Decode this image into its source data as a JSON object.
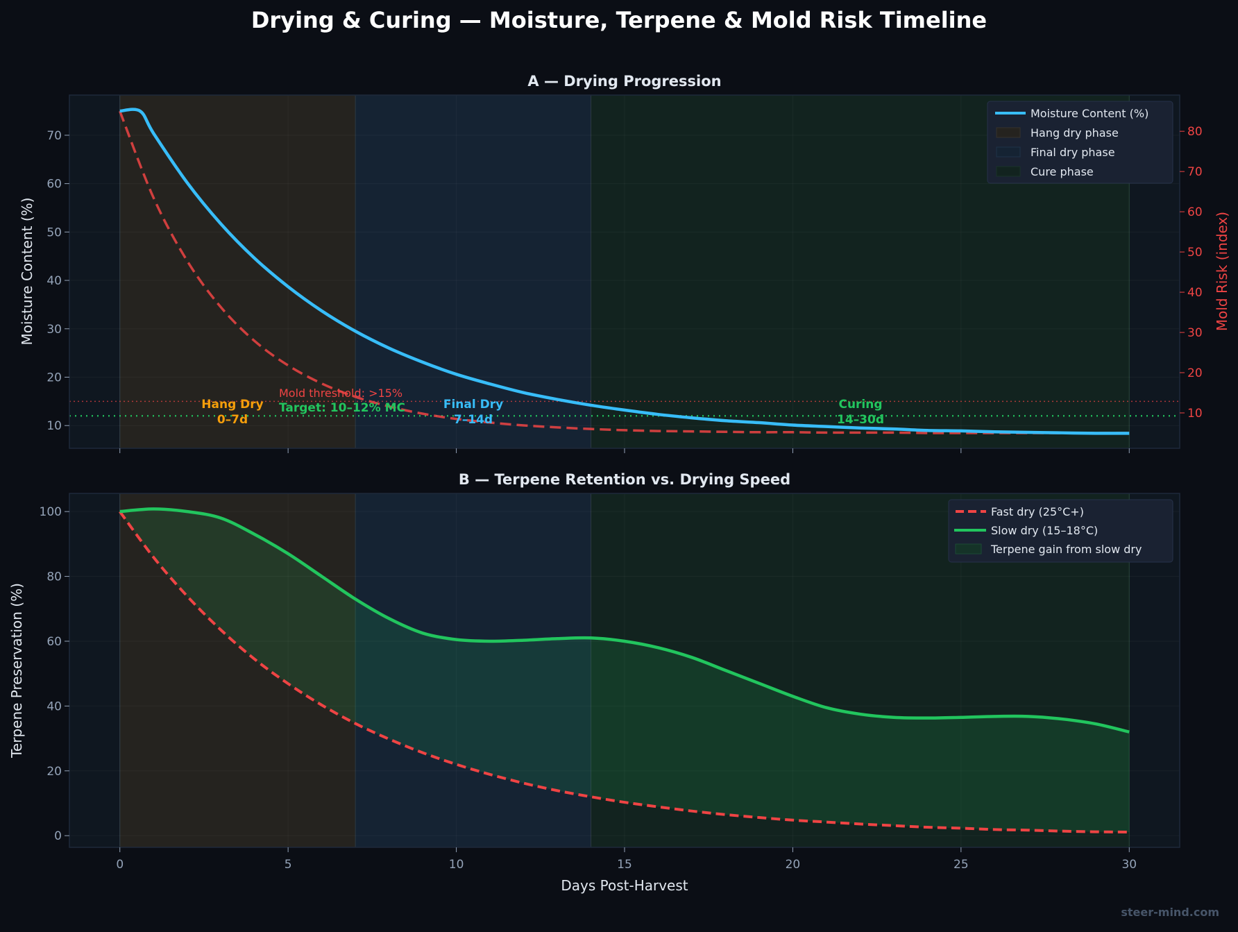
{
  "title": "Drying & Curing — Moisture, Terpene & Mold Risk Timeline",
  "watermark": "steer-mind.com",
  "colors": {
    "background": "#0b0e15",
    "axes": "#0f1720",
    "moisture": "#38bdf8",
    "mold": "#ef4444",
    "slow": "#22c55e",
    "fast": "#ef4444",
    "hang": "#f59e0b",
    "hang_fill": "#25231f",
    "final_fill": "#152333",
    "cure_fill": "#12231f"
  },
  "chart_data": [
    {
      "type": "line",
      "title": "A — Drying Progression",
      "xlabel": "",
      "ylabel": "Moisture Content (%)",
      "ylabel_right": "Mold Risk (index)",
      "xlim": [
        -1.5,
        31.5
      ],
      "ylim": [
        5.3,
        78.3
      ],
      "ylim_right": [
        1.2,
        89
      ],
      "x_ticks": [
        0,
        5,
        10,
        15,
        20,
        25,
        30
      ],
      "y_ticks": [
        10,
        20,
        30,
        40,
        50,
        60,
        70
      ],
      "y_ticks_right": [
        10,
        20,
        30,
        40,
        50,
        60,
        70,
        80
      ],
      "grid": true,
      "legend_position": "top-right",
      "legend": [
        "Moisture Content (%)",
        "Hang dry phase",
        "Final dry phase",
        "Cure phase"
      ],
      "phases": [
        {
          "name": "Hang dry phase",
          "start": 0,
          "end": 7
        },
        {
          "name": "Final dry phase",
          "start": 7,
          "end": 14
        },
        {
          "name": "Cure phase",
          "start": 14,
          "end": 30
        }
      ],
      "series": [
        {
          "name": "Moisture Content (%)",
          "axis": "left",
          "x": [
            0,
            0.6,
            1,
            2,
            3,
            4,
            5,
            6,
            7,
            8,
            9,
            10,
            11,
            12,
            13,
            14,
            15,
            16,
            17,
            18,
            19,
            20,
            21,
            22,
            23,
            24,
            25,
            26,
            27,
            28,
            29,
            30
          ],
          "y": [
            75,
            75,
            70.4,
            60.2,
            51.7,
            44.6,
            38.7,
            33.7,
            29.5,
            26.0,
            23.1,
            20.6,
            18.6,
            16.8,
            15.4,
            14.2,
            13.2,
            12.3,
            11.6,
            11.0,
            10.6,
            10.1,
            9.8,
            9.5,
            9.3,
            9.0,
            8.9,
            8.7,
            8.6,
            8.5,
            8.4,
            8.4
          ]
        },
        {
          "axis": "right",
          "style": "dashed",
          "x": [
            0,
            1,
            2,
            3,
            4,
            5,
            6,
            7,
            8,
            9,
            10,
            11,
            12,
            13,
            14,
            15,
            16,
            17,
            18,
            19,
            20,
            21,
            22,
            23,
            24,
            25,
            26,
            27,
            28,
            29,
            30
          ],
          "y": [
            85,
            63.5,
            47.8,
            36.3,
            27.9,
            21.8,
            17.3,
            14.0,
            11.6,
            9.8,
            8.5,
            7.6,
            6.9,
            6.4,
            6.0,
            5.7,
            5.5,
            5.4,
            5.3,
            5.2,
            5.2,
            5.1,
            5.1,
            5.1,
            5.0,
            5.0,
            5.0,
            5.0,
            5.0,
            5.0,
            5.0
          ]
        }
      ],
      "hlines": [
        {
          "y": 15,
          "label": "Mold threshold: >15%",
          "color": "#ef4444"
        },
        {
          "y": 12,
          "label": "Target: 10–12% MC",
          "color": "#22c55e"
        }
      ],
      "annotations": [
        {
          "x": 3.5,
          "line1": "Hang Dry",
          "line2": "0–7d",
          "color": "#f59e0b"
        },
        {
          "x": 10.5,
          "line1": "Final Dry",
          "line2": "7–14d",
          "color": "#38bdf8"
        },
        {
          "x": 22,
          "line1": "Curing",
          "line2": "14–30d",
          "color": "#22c55e"
        }
      ]
    },
    {
      "type": "line",
      "title": "B — Terpene Retention vs. Drying Speed",
      "xlabel": "Days Post-Harvest",
      "ylabel": "Terpene Preservation (%)",
      "xlim": [
        -1.5,
        31.5
      ],
      "ylim": [
        -3.6,
        105.6
      ],
      "x_ticks": [
        0,
        5,
        10,
        15,
        20,
        25,
        30
      ],
      "y_ticks": [
        0,
        20,
        40,
        60,
        80,
        100
      ],
      "grid": true,
      "legend_position": "top-right",
      "legend": [
        "Fast dry (25°C+)",
        "Slow dry (15–18°C)",
        "Terpene gain from slow dry"
      ],
      "x": [
        0,
        1,
        2,
        3,
        4,
        5,
        6,
        7,
        8,
        9,
        10,
        11,
        12,
        13,
        14,
        15,
        16,
        17,
        18,
        19,
        20,
        21,
        22,
        23,
        24,
        25,
        26,
        27,
        28,
        29,
        30
      ],
      "series": [
        {
          "name": "Fast dry (25°C+)",
          "style": "dashed",
          "y": [
            100,
            85.9,
            73.9,
            63.5,
            54.5,
            46.9,
            40.3,
            34.6,
            29.8,
            25.6,
            22.0,
            18.9,
            16.2,
            13.9,
            12.0,
            10.3,
            8.9,
            7.6,
            6.5,
            5.6,
            4.8,
            4.2,
            3.6,
            3.1,
            2.6,
            2.3,
            1.9,
            1.7,
            1.4,
            1.2,
            1.1
          ]
        },
        {
          "name": "Slow dry (15–18°C)",
          "style": "solid",
          "y": [
            100,
            100.8,
            100,
            98,
            93,
            87,
            80,
            73,
            67,
            62.5,
            60.5,
            60,
            60.3,
            60.8,
            61,
            60,
            58,
            55,
            51,
            47,
            43,
            39.5,
            37.5,
            36.5,
            36.3,
            36.5,
            36.8,
            36.8,
            36,
            34.5,
            32
          ]
        }
      ],
      "fill_between": "Terpene gain from slow dry"
    }
  ]
}
